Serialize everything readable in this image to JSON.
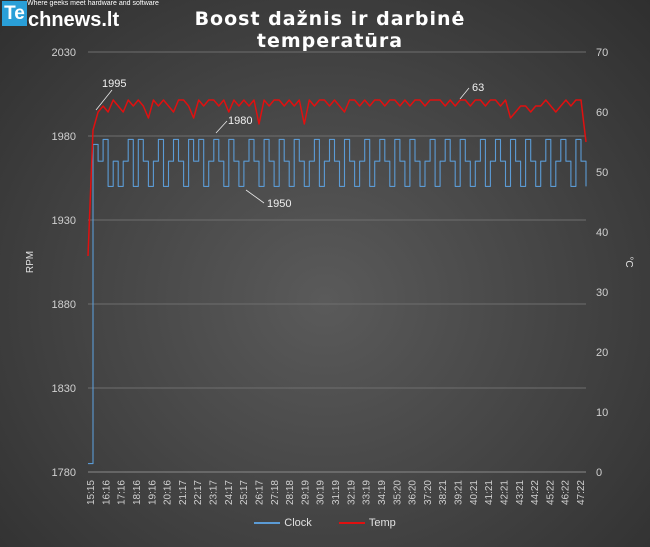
{
  "logo": {
    "mark": "Te",
    "word": "chnews.lt",
    "tagline": "Where geeks meet hardware and software"
  },
  "chart_data": {
    "type": "line",
    "title": "Boost dažnis ir darbinė temperatūra",
    "ylabel_left": "RPM",
    "ylabel_right": "°C",
    "ylim_left": [
      1780,
      2030
    ],
    "yticks_left": [
      "1780",
      "1830",
      "1880",
      "1930",
      "1980",
      "2030"
    ],
    "ylim_right": [
      0,
      70
    ],
    "yticks_right": [
      "0",
      "10",
      "20",
      "30",
      "40",
      "50",
      "60",
      "70"
    ],
    "x_tick_labels": [
      "15:15",
      "16:16",
      "17:16",
      "18:16",
      "19:16",
      "20:16",
      "21:17",
      "22:17",
      "23:17",
      "24:17",
      "25:17",
      "26:17",
      "27:18",
      "28:18",
      "29:19",
      "30:19",
      "31:19",
      "32:19",
      "33:19",
      "34:19",
      "35:20",
      "36:20",
      "37:20",
      "38:21",
      "39:21",
      "40:21",
      "41:21",
      "42:21",
      "43:21",
      "44:22",
      "45:22",
      "46:22",
      "47:22"
    ],
    "grid": true,
    "legend_position": "bottom",
    "series": [
      {
        "name": "Clock",
        "axis": "left",
        "color": "#5b9bd5",
        "values": [
          1785,
          1975,
          1965,
          1978,
          1950,
          1965,
          1950,
          1965,
          1978,
          1950,
          1978,
          1965,
          1950,
          1965,
          1978,
          1950,
          1965,
          1978,
          1965,
          1950,
          1978,
          1965,
          1978,
          1950,
          1965,
          1978,
          1965,
          1950,
          1978,
          1965,
          1950,
          1965,
          1978,
          1965,
          1950,
          1978,
          1965,
          1950,
          1978,
          1965,
          1950,
          1978,
          1965,
          1950,
          1965,
          1978,
          1950,
          1965,
          1978,
          1965,
          1950,
          1978,
          1965,
          1950,
          1965,
          1978,
          1950,
          1965,
          1978,
          1965,
          1950,
          1978,
          1965,
          1950,
          1978,
          1965,
          1950,
          1965,
          1978,
          1950,
          1965,
          1978,
          1965,
          1950,
          1978,
          1965,
          1950,
          1965,
          1978,
          1950,
          1965,
          1978,
          1965,
          1950,
          1978,
          1965,
          1950,
          1978,
          1965,
          1950,
          1965,
          1978,
          1950,
          1965,
          1978,
          1965,
          1950,
          1978,
          1965,
          1950
        ]
      },
      {
        "name": "Temp",
        "axis": "right",
        "color": "#e01010",
        "values": [
          36,
          57,
          60,
          61,
          60,
          62,
          61,
          60,
          62,
          61,
          62,
          61,
          59,
          62,
          61,
          62,
          61,
          60,
          62,
          62,
          61,
          59,
          62,
          61,
          62,
          62,
          61,
          62,
          60,
          62,
          61,
          62,
          61,
          62,
          58,
          62,
          61,
          62,
          62,
          61,
          62,
          61,
          62,
          58,
          62,
          61,
          62,
          62,
          61,
          62,
          61,
          60,
          62,
          62,
          61,
          62,
          61,
          62,
          62,
          61,
          62,
          62,
          61,
          62,
          61,
          62,
          62,
          61,
          62,
          62,
          62,
          61,
          62,
          61,
          62,
          62,
          61,
          62,
          62,
          61,
          62,
          62,
          61,
          62,
          59,
          60,
          61,
          61,
          60,
          61,
          61,
          62,
          61,
          60,
          61,
          62,
          61,
          62,
          62,
          55
        ]
      }
    ],
    "annotations": [
      {
        "text": "1995",
        "series": "Clock"
      },
      {
        "text": "1980",
        "series": "Clock"
      },
      {
        "text": "1950",
        "series": "Clock"
      },
      {
        "text": "63",
        "series": "Temp"
      }
    ]
  }
}
